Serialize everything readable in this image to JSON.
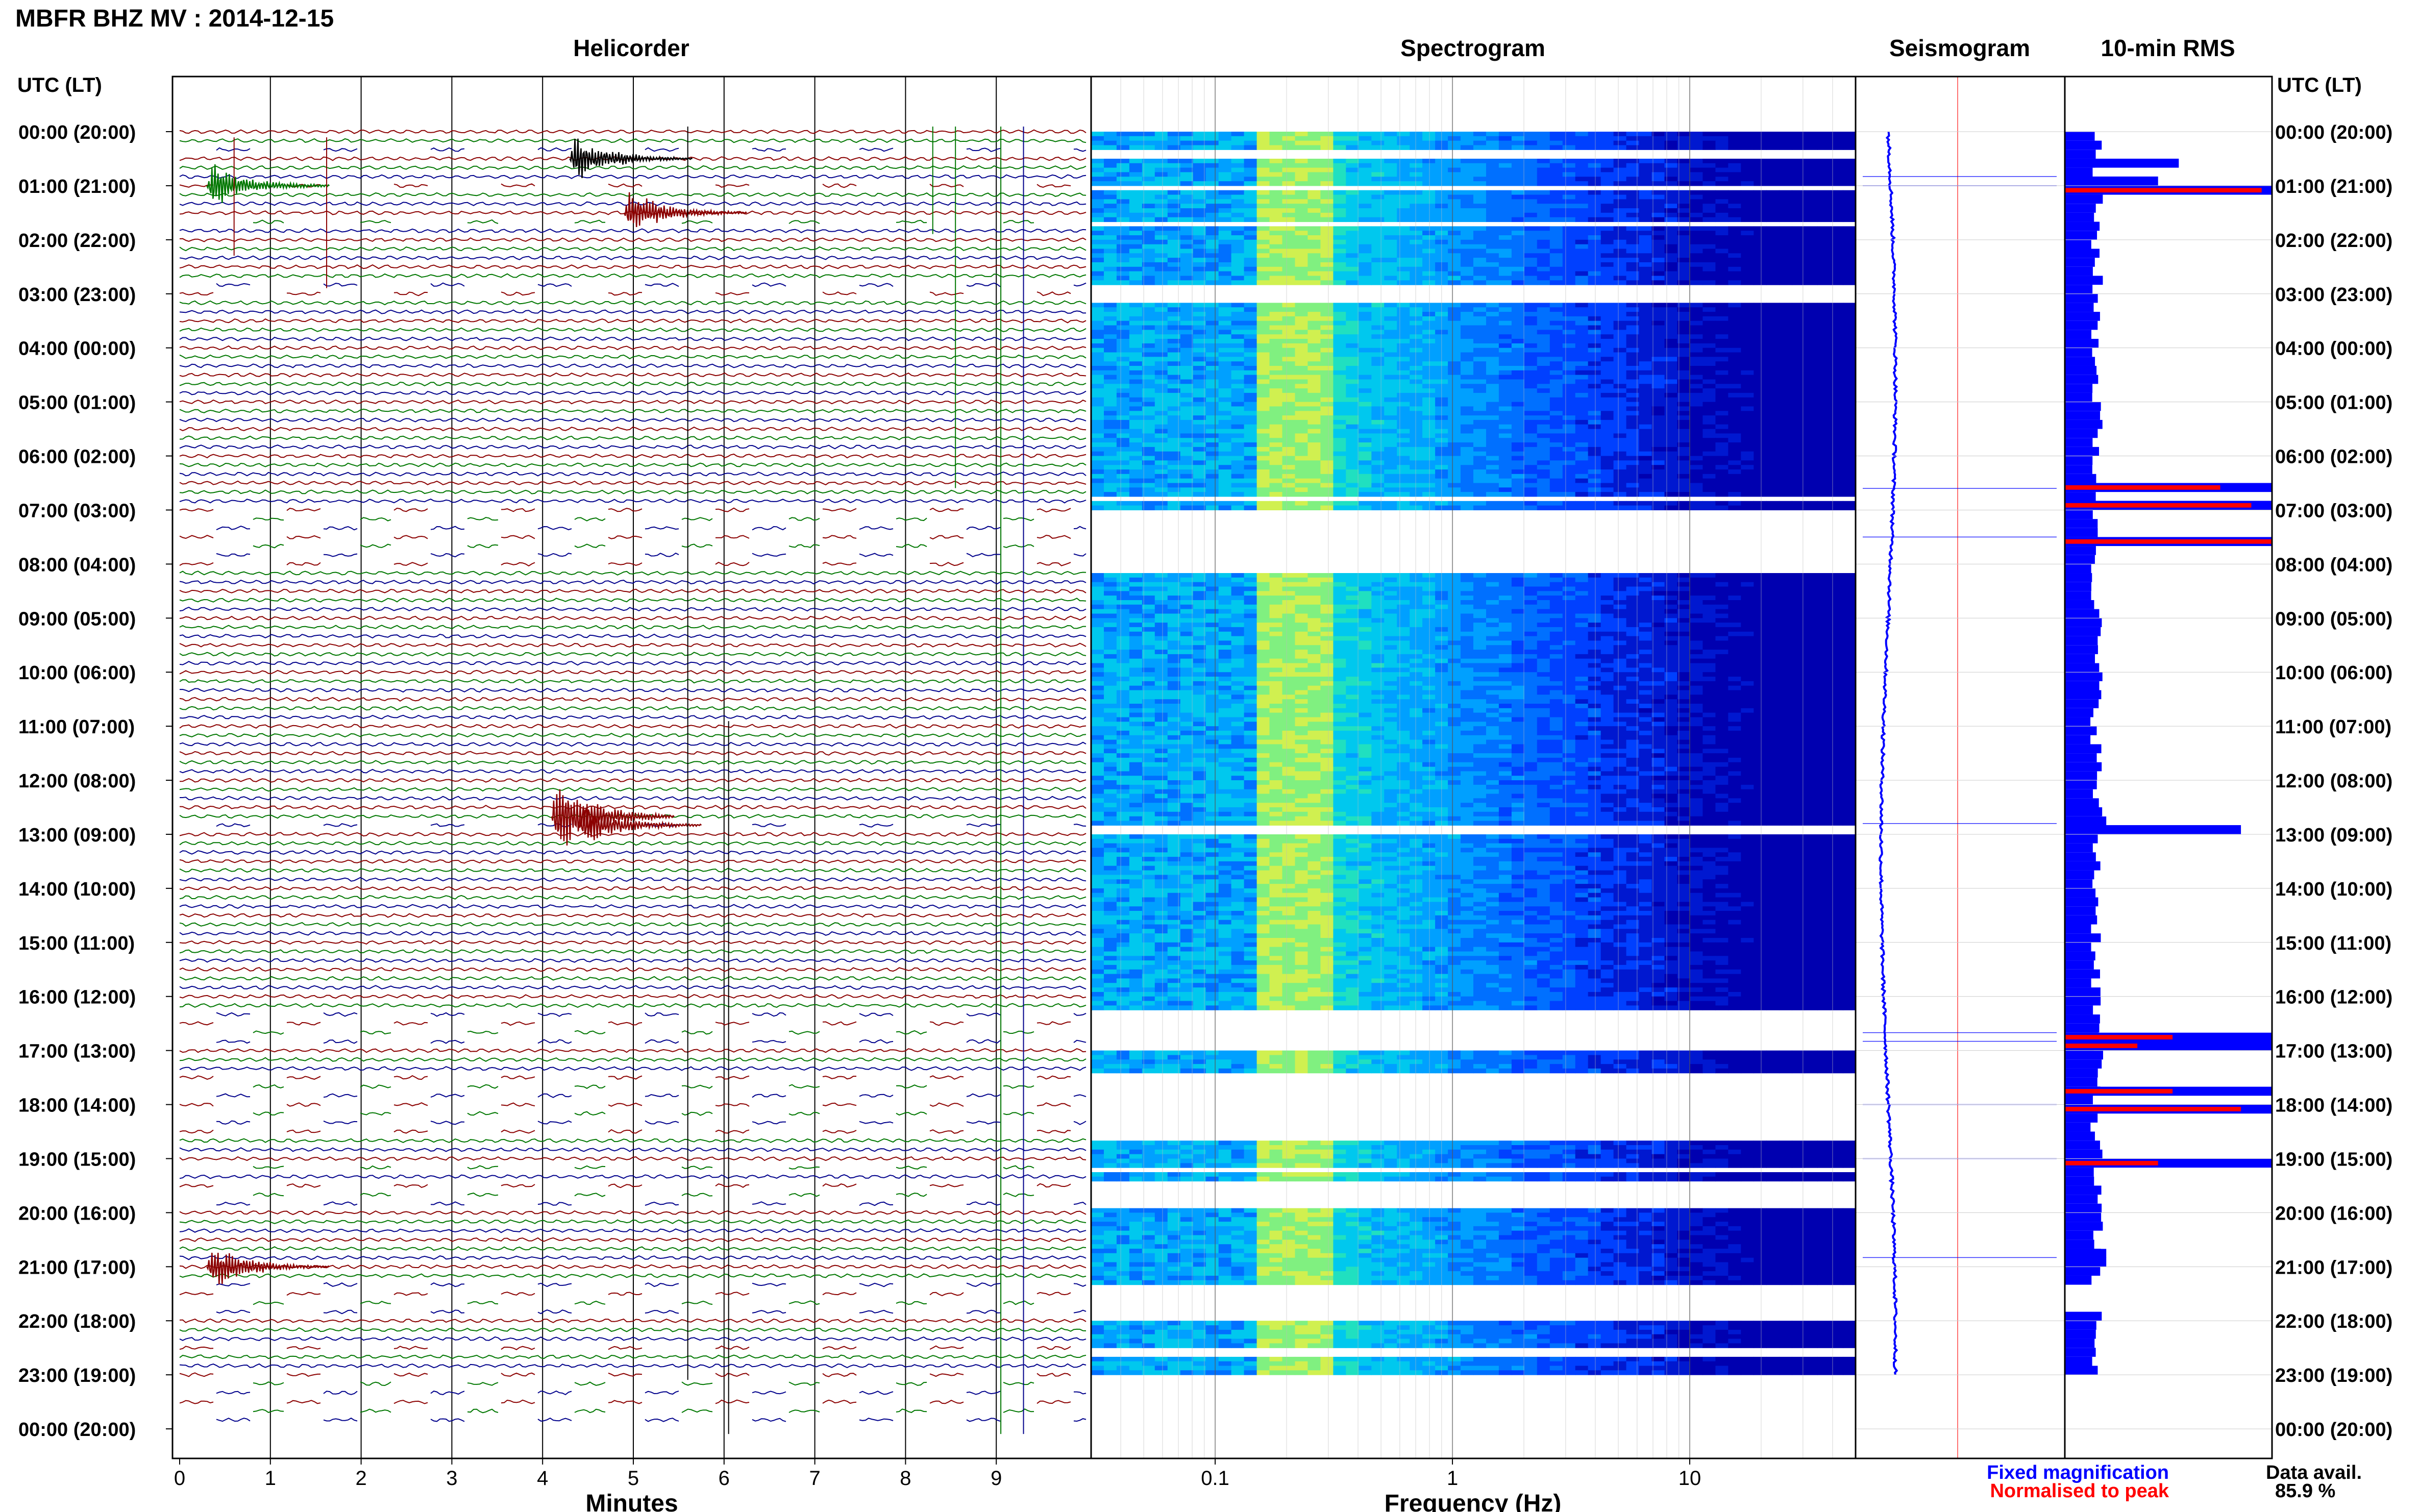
{
  "header": {
    "title": "MBFR BHZ MV : 2014-12-15",
    "panel_titles": [
      "Helicorder",
      "Spectrogram",
      "Seismogram",
      "10-min RMS"
    ],
    "utc_label": "UTC (LT)",
    "utc_label_right": "UTC (LT)"
  },
  "footer": {
    "minutes_label": "Minutes",
    "frequency_label": "Frequency (Hz)",
    "legend_fixed": "Fixed magnification",
    "legend_normalised": "Normalised to peak",
    "data_avail_label": "Data avail.",
    "data_avail_value": "85.9 %"
  },
  "colors": {
    "trace_red": "#8b0000",
    "trace_green": "#007700",
    "trace_blue": "#00008b",
    "trace_black": "#000000",
    "fixed_blue": "#0000ff",
    "normalised_red": "#ff0000"
  },
  "chart_data": [
    {
      "type": "line",
      "panel": "helicorder",
      "title": "Helicorder",
      "xlabel": "Minutes",
      "x_ticks": [
        "0",
        "1",
        "2",
        "3",
        "4",
        "5",
        "6",
        "7",
        "8",
        "9"
      ],
      "xlim": [
        0,
        10
      ],
      "y_ticks": [
        "00:00 (20:00)",
        "01:00 (21:00)",
        "02:00 (22:00)",
        "03:00 (23:00)",
        "04:00 (00:00)",
        "05:00 (01:00)",
        "06:00 (02:00)",
        "07:00 (03:00)",
        "08:00 (04:00)",
        "09:00 (05:00)",
        "10:00 (06:00)",
        "11:00 (07:00)",
        "12:00 (08:00)",
        "13:00 (09:00)",
        "14:00 (10:00)",
        "15:00 (11:00)",
        "16:00 (12:00)",
        "17:00 (13:00)",
        "18:00 (14:00)",
        "19:00 (15:00)",
        "20:00 (16:00)",
        "21:00 (17:00)",
        "22:00 (18:00)",
        "23:00 (19:00)",
        "00:00 (20:00)"
      ],
      "rows_per_hour": 6,
      "events": [
        {
          "hour": 0.5,
          "minute": 4.3
        },
        {
          "hour": 1.0,
          "minute": 0.3
        },
        {
          "hour": 1.5,
          "minute": 4.9
        },
        {
          "hour": 12.67,
          "minute": 4.1
        },
        {
          "hour": 12.83,
          "minute": 4.4
        },
        {
          "hour": 21.0,
          "minute": 0.3
        }
      ]
    },
    {
      "type": "heatmap",
      "panel": "spectrogram",
      "title": "Spectrogram",
      "xlabel": "Frequency (Hz)",
      "x_scale": "log",
      "xlim": [
        0.03,
        50
      ],
      "x_ticks": [
        "0.1",
        "1",
        "10"
      ],
      "peak_band_hz": [
        0.15,
        0.3
      ],
      "gaps_hours": [
        [
          0.33,
          0.42
        ],
        [
          0.92,
          1.08
        ],
        [
          1.6,
          1.75
        ],
        [
          2.8,
          3.1
        ],
        [
          6.7,
          6.8
        ],
        [
          6.95,
          8.1
        ],
        [
          12.8,
          12.93
        ],
        [
          16.2,
          17.0
        ],
        [
          17.4,
          18.6
        ],
        [
          19.1,
          19.2
        ],
        [
          19.35,
          19.9
        ],
        [
          21.3,
          22.0
        ],
        [
          22.5,
          22.6
        ],
        [
          23.0,
          24.0
        ]
      ]
    },
    {
      "type": "line",
      "panel": "seismogram",
      "title": "Seismogram"
    },
    {
      "type": "bar",
      "panel": "rms",
      "title": "10-min RMS",
      "series": [
        {
          "name": "Fixed magnification"
        },
        {
          "name": "Normalised to peak"
        }
      ],
      "y_ticks": [
        "00:00 (20:00)",
        "01:00 (21:00)",
        "02:00 (22:00)",
        "03:00 (23:00)",
        "04:00 (00:00)",
        "05:00 (01:00)",
        "06:00 (02:00)",
        "07:00 (03:00)",
        "08:00 (04:00)",
        "09:00 (05:00)",
        "10:00 (06:00)",
        "11:00 (07:00)",
        "12:00 (08:00)",
        "13:00 (09:00)",
        "14:00 (10:00)",
        "15:00 (11:00)",
        "16:00 (12:00)",
        "17:00 (13:00)",
        "18:00 (14:00)",
        "19:00 (15:00)",
        "20:00 (16:00)",
        "21:00 (17:00)",
        "22:00 (18:00)",
        "23:00 (19:00)",
        "00:00 (20:00)"
      ],
      "large_bars": [
        {
          "hour": 0.5,
          "fixed": 0.55,
          "normalised": 0
        },
        {
          "hour": 0.83,
          "fixed": 0.45,
          "normalised": 0
        },
        {
          "hour": 1.0,
          "fixed": 1.0,
          "normalised": 0.95
        },
        {
          "hour": 6.5,
          "fixed": 1.0,
          "normalised": 0.75
        },
        {
          "hour": 6.83,
          "fixed": 1.0,
          "normalised": 0.9
        },
        {
          "hour": 7.5,
          "fixed": 1.0,
          "normalised": 1.0
        },
        {
          "hour": 12.67,
          "fixed": 0.2,
          "normalised": 0
        },
        {
          "hour": 12.83,
          "fixed": 0.85,
          "normalised": 0
        },
        {
          "hour": 16.67,
          "fixed": 1.0,
          "normalised": 0.52
        },
        {
          "hour": 16.83,
          "fixed": 1.0,
          "normalised": 0.35
        },
        {
          "hour": 17.67,
          "fixed": 1.0,
          "normalised": 0.52
        },
        {
          "hour": 18.0,
          "fixed": 1.0,
          "normalised": 0.85
        },
        {
          "hour": 19.0,
          "fixed": 1.0,
          "normalised": 0.45
        },
        {
          "hour": 20.67,
          "fixed": 0.2,
          "normalised": 0
        },
        {
          "hour": 20.83,
          "fixed": 0.2,
          "normalised": 0
        }
      ]
    }
  ]
}
